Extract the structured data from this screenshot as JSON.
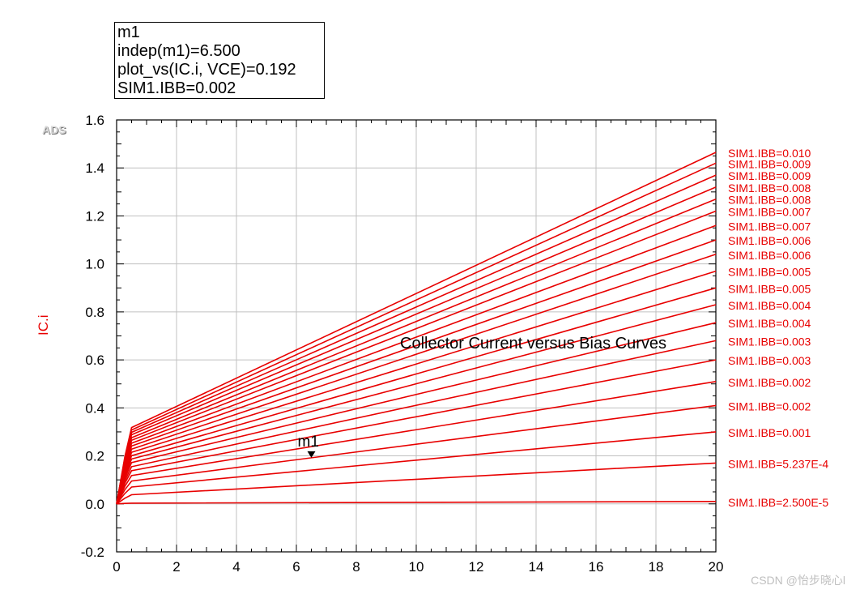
{
  "marker_readout": {
    "name": "m1",
    "line1": "indep(m1)=6.500",
    "line2": "plot_vs(IC.i, VCE)=0.192",
    "line3": "SIM1.IBB=0.002"
  },
  "logo_text": "ADS",
  "watermark": "CSDN @怡步晓心l",
  "colors": {
    "curve": "#e80000",
    "grid": "#c0c0c0",
    "axis_text": "#000000",
    "label": "#e80000"
  },
  "chart_data": {
    "type": "line",
    "title": "",
    "annotation": "Collector Current versus Bias Curves",
    "xlabel": "",
    "ylabel": "IC.i",
    "xlim": [
      0,
      20
    ],
    "ylim": [
      -0.2,
      1.6
    ],
    "x_ticks": [
      "0",
      "2",
      "4",
      "6",
      "8",
      "10",
      "12",
      "14",
      "16",
      "18",
      "20"
    ],
    "y_ticks": [
      "-0.2",
      "0.0",
      "0.2",
      "0.4",
      "0.6",
      "0.8",
      "1.0",
      "1.2",
      "1.4",
      "1.6"
    ],
    "x_tick_values": [
      0,
      2,
      4,
      6,
      8,
      10,
      12,
      14,
      16,
      18,
      20
    ],
    "y_tick_values": [
      -0.2,
      0,
      0.2,
      0.4,
      0.6,
      0.8,
      1.0,
      1.2,
      1.4,
      1.6
    ],
    "grid": true,
    "knee_x": 0.5,
    "series": [
      {
        "name": "SIM1.IBB=2.500E-5",
        "knee": 0.003,
        "end": 0.01
      },
      {
        "name": "SIM1.IBB=5.237E-4",
        "knee": 0.038,
        "end": 0.17
      },
      {
        "name": "SIM1.IBB=0.001",
        "knee": 0.07,
        "end": 0.3
      },
      {
        "name": "SIM1.IBB=0.002",
        "knee": 0.095,
        "end": 0.41
      },
      {
        "name": "SIM1.IBB=0.002",
        "knee": 0.118,
        "end": 0.51
      },
      {
        "name": "SIM1.IBB=0.003",
        "knee": 0.138,
        "end": 0.6
      },
      {
        "name": "SIM1.IBB=0.003",
        "knee": 0.155,
        "end": 0.68
      },
      {
        "name": "SIM1.IBB=0.004",
        "knee": 0.172,
        "end": 0.755
      },
      {
        "name": "SIM1.IBB=0.004",
        "knee": 0.187,
        "end": 0.83
      },
      {
        "name": "SIM1.IBB=0.005",
        "knee": 0.201,
        "end": 0.9
      },
      {
        "name": "SIM1.IBB=0.005",
        "knee": 0.215,
        "end": 0.97
      },
      {
        "name": "SIM1.IBB=0.006",
        "knee": 0.228,
        "end": 1.04
      },
      {
        "name": "SIM1.IBB=0.006",
        "knee": 0.241,
        "end": 1.1
      },
      {
        "name": "SIM1.IBB=0.007",
        "knee": 0.253,
        "end": 1.16
      },
      {
        "name": "SIM1.IBB=0.007",
        "knee": 0.265,
        "end": 1.22
      },
      {
        "name": "SIM1.IBB=0.008",
        "knee": 0.276,
        "end": 1.27
      },
      {
        "name": "SIM1.IBB=0.008",
        "knee": 0.288,
        "end": 1.32
      },
      {
        "name": "SIM1.IBB=0.009",
        "knee": 0.298,
        "end": 1.37
      },
      {
        "name": "SIM1.IBB=0.009",
        "knee": 0.308,
        "end": 1.42
      },
      {
        "name": "SIM1.IBB=0.010",
        "knee": 0.318,
        "end": 1.465
      }
    ],
    "marker": {
      "name": "m1",
      "x": 6.5,
      "y": 0.192
    }
  }
}
